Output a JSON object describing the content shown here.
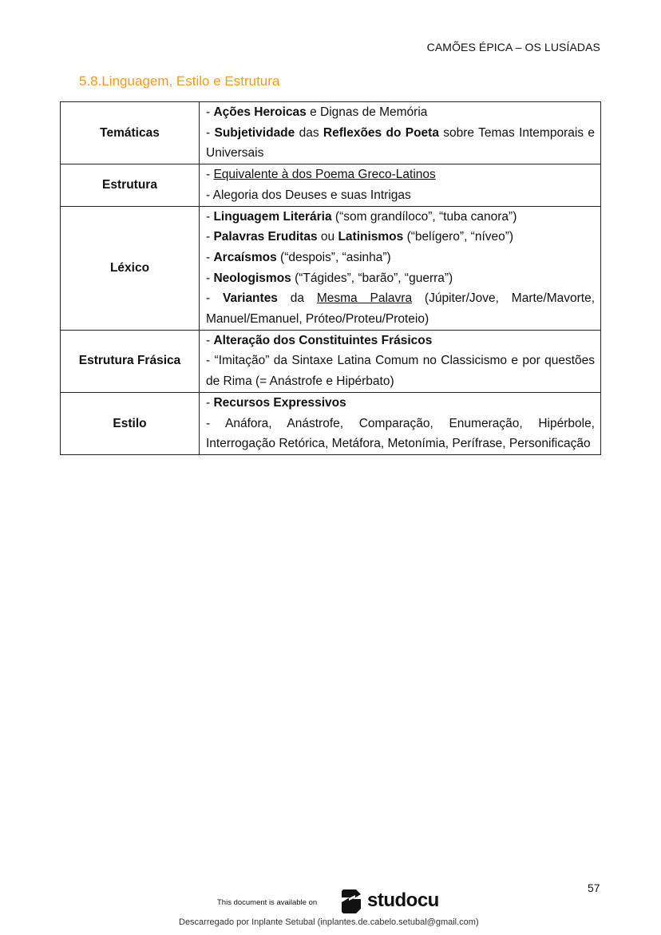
{
  "header": {
    "running_title": "CAMÕES ÉPICA – OS LUSÍADAS"
  },
  "section": {
    "title": "5.8.Linguagem, Estilo e Estrutura"
  },
  "table": {
    "rows": [
      {
        "label": "Temáticas",
        "items": [
          [
            {
              "t": "- "
            },
            {
              "t": "Ações Heroicas",
              "b": true
            },
            {
              "t": " e Dignas de Memória"
            }
          ],
          [
            {
              "t": "- "
            },
            {
              "t": "Subjetividade",
              "b": true
            },
            {
              "t": " das "
            },
            {
              "t": "Reflexões do Poeta",
              "b": true
            },
            {
              "t": " sobre Temas Intemporais e Universais"
            }
          ]
        ]
      },
      {
        "label": "Estrutura",
        "items": [
          [
            {
              "t": "- "
            },
            {
              "t": "Equivalente à dos Poema Greco-Latinos",
              "u": true
            }
          ],
          [
            {
              "t": "- Alegoria dos Deuses e suas Intrigas"
            }
          ]
        ]
      },
      {
        "label": "Léxico",
        "items": [
          [
            {
              "t": "- "
            },
            {
              "t": "Linguagem Literária",
              "b": true
            },
            {
              "t": " (“som grandíloco”, “tuba canora”)"
            }
          ],
          [
            {
              "t": "- "
            },
            {
              "t": "Palavras Eruditas",
              "b": true
            },
            {
              "t": " ou "
            },
            {
              "t": "Latinismos",
              "b": true
            },
            {
              "t": " (“belígero”, “níveo”)"
            }
          ],
          [
            {
              "t": "- "
            },
            {
              "t": "Arcaísmos",
              "b": true
            },
            {
              "t": " (“despois”, “asinha”)"
            }
          ],
          [
            {
              "t": "- "
            },
            {
              "t": "Neologismos",
              "b": true
            },
            {
              "t": " (“Tágides”, “barão”, “guerra”)"
            }
          ],
          [
            {
              "t": "- "
            },
            {
              "t": "Variantes",
              "b": true
            },
            {
              "t": " da "
            },
            {
              "t": "Mesma Palavra",
              "u": true
            },
            {
              "t": " (Júpiter/Jove, Marte/Mavorte, Manuel/Emanuel, Próteo/Proteu/Proteio)"
            }
          ]
        ]
      },
      {
        "label": "Estrutura Frásica",
        "items": [
          [
            {
              "t": "- "
            },
            {
              "t": "Alteração dos Constituintes Frásicos",
              "b": true
            }
          ],
          [
            {
              "t": "- “Imitação” da Sintaxe Latina Comum no Classicismo e por questões de Rima (= Anástrofe e Hipérbato)"
            }
          ]
        ]
      },
      {
        "label": "Estilo",
        "items": [
          [
            {
              "t": "- "
            },
            {
              "t": "Recursos Expressivos",
              "b": true
            }
          ],
          [
            {
              "t": "- Anáfora, Anástrofe, Comparação, Enumeração, Hipérbole, Interrogação Retórica, Metáfora, Metonímia, Perífrase, Personificação"
            }
          ]
        ]
      }
    ]
  },
  "footer": {
    "page_number": "57",
    "available_on": "This document is available on",
    "brand": "studocu",
    "downloaded_by": "Descarregado por Inplante Setubal (inplantes.de.cabelo.setubal@gmail.com)"
  }
}
